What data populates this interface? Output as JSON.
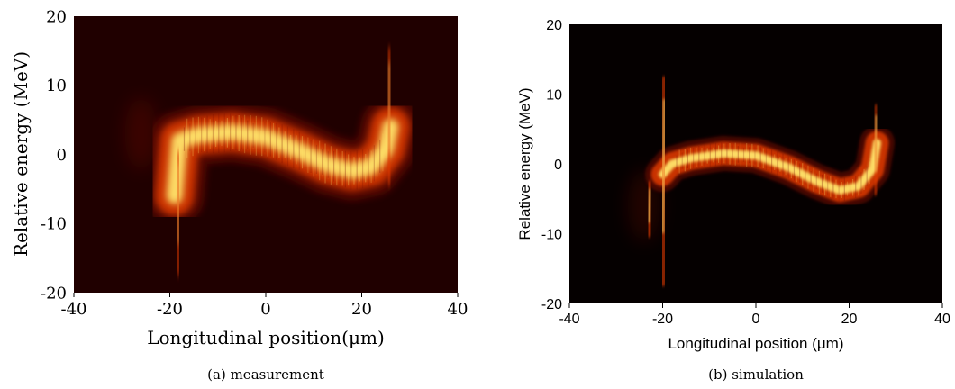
{
  "chart_data": [
    {
      "type": "heatmap",
      "title": "",
      "caption": "(a) measurement",
      "xlabel": "Longitudinal position(",
      "xlabel_unit": "μm",
      "xlabel_close": ")",
      "ylabel": "Relative energy (MeV)",
      "xlim": [
        -40,
        40
      ],
      "ylim": [
        -20,
        20
      ],
      "xticks": [
        "-40",
        "-20",
        "0",
        "20",
        "40"
      ],
      "yticks": [
        "-20",
        "-10",
        "0",
        "10",
        "20"
      ],
      "colormap": "hot",
      "colors": {
        "background": "#200000",
        "low": "#7a0c00",
        "mid": "#e03a00",
        "high": "#ffe36a"
      },
      "centerline": [
        [
          -19,
          -6
        ],
        [
          -18,
          2
        ],
        [
          -14,
          2.8
        ],
        [
          -7,
          3.2
        ],
        [
          0,
          2.5
        ],
        [
          7,
          0.5
        ],
        [
          13,
          -1.5
        ],
        [
          18,
          -2.4
        ],
        [
          22,
          -1.8
        ],
        [
          25,
          0.8
        ],
        [
          26,
          4
        ]
      ],
      "spikes": [
        {
          "x": -18.5,
          "y0": -17,
          "y1": 0,
          "intensity": 0.9
        },
        {
          "x": 25.5,
          "y0": -4,
          "y1": 15,
          "intensity": 0.85
        }
      ],
      "halo": {
        "x": -26,
        "y": 3,
        "intensity": 0.3
      }
    },
    {
      "type": "heatmap",
      "title": "",
      "caption": "(b) simulation",
      "xlabel": "Longitudinal position (",
      "xlabel_unit": "μm",
      "xlabel_close": ")",
      "ylabel": "Relative energy (MeV)",
      "xlim": [
        -40,
        40
      ],
      "ylim": [
        -20,
        20
      ],
      "xticks": [
        "-40",
        "-20",
        "0",
        "20",
        "40"
      ],
      "yticks": [
        "-20",
        "-10",
        "0",
        "10",
        "20"
      ],
      "colormap": "hot",
      "colors": {
        "background": "#050000",
        "low": "#7a0c00",
        "mid": "#e03a00",
        "high": "#ffe36a"
      },
      "centerline": [
        [
          -20,
          -1.5
        ],
        [
          -18,
          0
        ],
        [
          -14,
          0.8
        ],
        [
          -7,
          1.5
        ],
        [
          0,
          1.2
        ],
        [
          7,
          -0.5
        ],
        [
          13,
          -2.5
        ],
        [
          18,
          -3.8
        ],
        [
          22,
          -3.2
        ],
        [
          25,
          -0.8
        ],
        [
          26,
          3
        ]
      ],
      "spikes": [
        {
          "x": -20,
          "y0": -17,
          "y1": 12,
          "intensity": 0.75
        },
        {
          "x": -23,
          "y0": -10,
          "y1": -3,
          "intensity": 0.8
        },
        {
          "x": 25.5,
          "y0": -4,
          "y1": 8,
          "intensity": 0.6
        }
      ],
      "halo": {
        "x": -24,
        "y": -6,
        "intensity": 0.25
      }
    }
  ]
}
